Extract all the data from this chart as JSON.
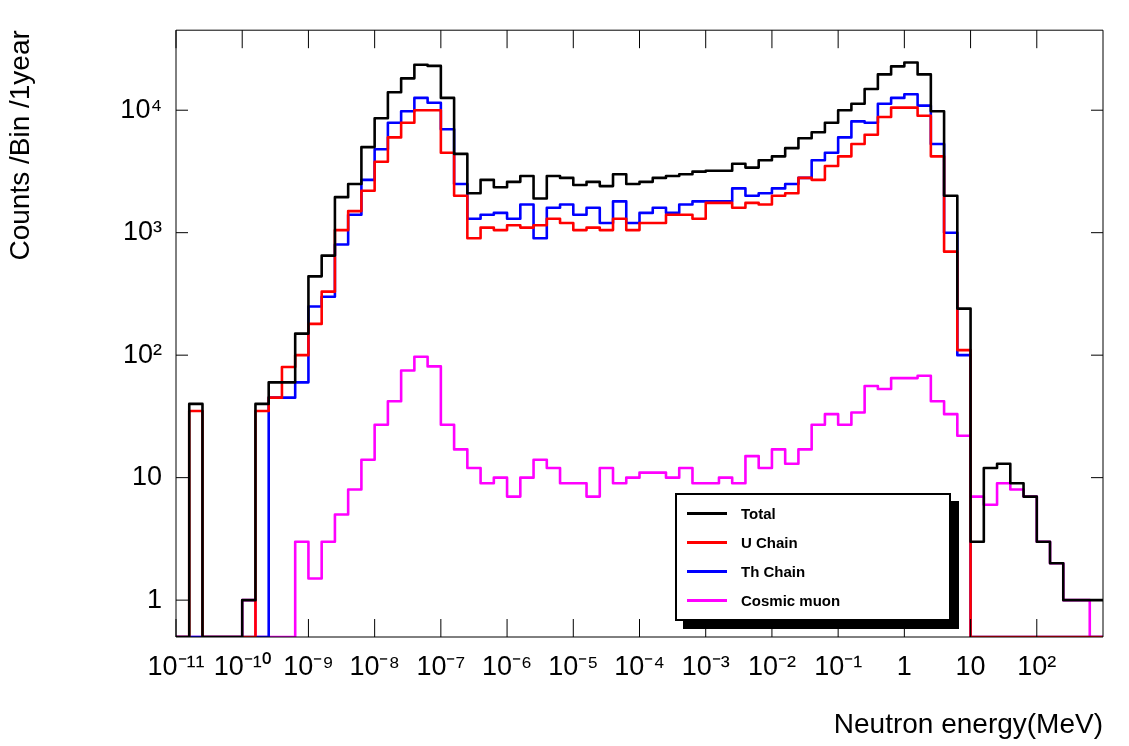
{
  "chart_data": {
    "type": "histogram",
    "xlabel": "Neutron energy(MeV)",
    "ylabel": "Counts /Bin /1year",
    "log": "xy",
    "legend": "bottom right",
    "xlim": [
      1e-11,
      1000
    ],
    "ylim": [
      0.5,
      45000
    ],
    "xticks": [
      {
        "value": 1e-11,
        "label": "10⁻¹¹"
      },
      {
        "value": 1e-10,
        "label": "10⁻¹⁰"
      },
      {
        "value": 1e-09,
        "label": "10⁻⁹"
      },
      {
        "value": 1e-08,
        "label": "10⁻⁸"
      },
      {
        "value": 1e-07,
        "label": "10⁻⁷"
      },
      {
        "value": 1e-06,
        "label": "10⁻⁶"
      },
      {
        "value": 1e-05,
        "label": "10⁻⁵"
      },
      {
        "value": 0.0001,
        "label": "10⁻⁴"
      },
      {
        "value": 0.001,
        "label": "10⁻³"
      },
      {
        "value": 0.01,
        "label": "10⁻²"
      },
      {
        "value": 0.1,
        "label": "10⁻¹"
      },
      1,
      10,
      {
        "value": 100,
        "label": "10²"
      }
    ],
    "yticks": [
      1,
      10,
      {
        "value": 100,
        "label": "10²"
      },
      {
        "value": 1000,
        "label": "10³"
      },
      {
        "value": 10000,
        "label": "10⁴"
      }
    ],
    "bins": [
      1e-11,
      1.585e-11,
      2.512e-11,
      3.981e-11,
      6.31e-11,
      1e-10,
      1.585e-10,
      2.512e-10,
      3.981e-10,
      6.31e-10,
      1e-09,
      1.585e-09,
      2.512e-09,
      3.981e-09,
      6.31e-09,
      1e-08,
      1.585e-08,
      2.512e-08,
      3.981e-08,
      6.31e-08,
      1e-07,
      1.585e-07,
      2.512e-07,
      3.981e-07,
      6.31e-07,
      1e-06,
      1.585e-06,
      2.512e-06,
      3.981e-06,
      6.31e-06,
      1e-05,
      1.585e-05,
      2.512e-05,
      3.981e-05,
      6.31e-05,
      0.0001,
      0.0001585,
      0.0002512,
      0.0003981,
      0.000631,
      0.001,
      0.001585,
      0.002512,
      0.003981,
      0.00631,
      0.01,
      0.01585,
      0.02512,
      0.03981,
      0.0631,
      0.1,
      0.1585,
      0.2512,
      0.3981,
      0.631,
      1,
      1.585,
      2.512,
      3.981,
      6.31,
      10,
      15.85,
      25.12,
      39.81,
      63.1,
      100,
      158.5,
      251.2,
      398.1,
      631,
      1000
    ],
    "series": [
      {
        "name": "Total",
        "color": "#000000",
        "values": [
          null,
          40,
          null,
          null,
          null,
          1,
          40,
          60,
          60,
          150,
          440,
          650,
          1950,
          2500,
          5000,
          8600,
          14000,
          18200,
          23500,
          23000,
          12600,
          4400,
          2100,
          2700,
          2350,
          2600,
          2900,
          1900,
          2900,
          2800,
          2450,
          2600,
          2400,
          3000,
          2500,
          2600,
          2800,
          2900,
          3000,
          3150,
          3200,
          3200,
          3650,
          3400,
          3900,
          4200,
          4900,
          5900,
          6600,
          7900,
          10000,
          11300,
          14900,
          19600,
          22800,
          24500,
          19600,
          9800,
          2000,
          240,
          3,
          12,
          13,
          9,
          7,
          3,
          2,
          1,
          1,
          1
        ]
      },
      {
        "name": "U Chain",
        "color": "#ff0000",
        "values": [
          null,
          35,
          null,
          null,
          null,
          null,
          35,
          45,
          80,
          100,
          180,
          330,
          1050,
          1500,
          2200,
          3800,
          6000,
          7900,
          10000,
          10000,
          4500,
          2000,
          900,
          1100,
          1050,
          1150,
          1100,
          1150,
          1300,
          1200,
          1050,
          1100,
          1050,
          1300,
          1050,
          1200,
          1200,
          1400,
          1400,
          1300,
          1750,
          1750,
          1600,
          1750,
          1700,
          2000,
          2100,
          2800,
          2700,
          3500,
          4200,
          5300,
          6300,
          8800,
          10500,
          10500,
          9000,
          4200,
          700,
          110,
          null,
          null,
          null,
          null,
          null,
          null,
          null,
          null,
          null,
          null
        ]
      },
      {
        "name": "Th Chain",
        "color": "#0000ff",
        "values": [
          null,
          null,
          null,
          null,
          null,
          null,
          null,
          45,
          45,
          60,
          250,
          300,
          800,
          1400,
          2700,
          4800,
          7900,
          9800,
          12600,
          11500,
          7000,
          2500,
          1300,
          1400,
          1450,
          1300,
          1700,
          900,
          1600,
          1700,
          1400,
          1600,
          1200,
          1800,
          1200,
          1450,
          1600,
          1450,
          1700,
          1800,
          1800,
          1800,
          2300,
          2000,
          2100,
          2300,
          2500,
          2800,
          3900,
          4500,
          6000,
          8100,
          7900,
          11300,
          12600,
          13500,
          10900,
          5300,
          1000,
          100,
          null,
          null,
          null,
          null,
          null,
          null,
          null,
          null,
          null,
          null
        ]
      },
      {
        "name": "Cosmic muon",
        "color": "#ff00ff",
        "values": [
          null,
          null,
          null,
          null,
          null,
          1,
          null,
          null,
          null,
          3,
          1.5,
          3,
          5,
          8,
          14,
          27,
          42,
          75,
          97,
          81,
          27,
          17,
          12,
          9,
          10,
          7,
          10,
          14,
          12,
          9,
          9,
          7,
          12,
          9,
          10,
          11,
          11,
          10,
          12,
          9,
          9,
          10,
          9,
          15,
          12,
          17,
          13,
          17,
          27,
          33,
          27,
          34,
          56,
          53,
          65,
          65,
          68,
          42,
          33,
          22,
          7,
          6,
          9,
          8,
          7,
          3,
          2,
          1,
          1,
          null
        ]
      }
    ]
  }
}
